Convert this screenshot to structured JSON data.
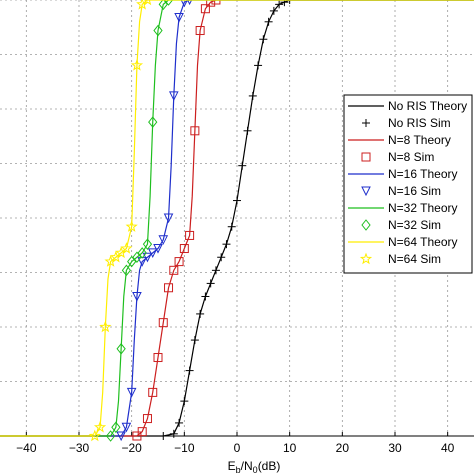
{
  "chart_data": {
    "type": "line",
    "xlabel": "Eb/N0(dB)",
    "xlabel_parts": {
      "e": "E",
      "b": "b",
      "slash": "/N",
      "zero": "0",
      "unit": "(dB)"
    },
    "xlim": [
      -45,
      45
    ],
    "ylim": [
      0,
      1
    ],
    "x_ticks": [
      -40,
      -30,
      -20,
      -10,
      0,
      10,
      20,
      30,
      40
    ],
    "x_tick_labels": [
      "−40",
      "−30",
      "−20",
      "−10",
      "0",
      "10",
      "20",
      "30",
      "40"
    ],
    "grid": true,
    "legend_position": "right",
    "series": [
      {
        "name": "No RIS Theory",
        "color": "#000000",
        "marker": "none",
        "x": [
          -14,
          -12,
          -11,
          -10,
          -9,
          -8,
          -7,
          -6,
          -5,
          -4,
          -3,
          -2,
          -1,
          0,
          1,
          2,
          3,
          4,
          5,
          6,
          7,
          8,
          9,
          10,
          11,
          12,
          14
        ],
        "y": [
          0.0,
          0.005,
          0.03,
          0.08,
          0.15,
          0.22,
          0.28,
          0.32,
          0.35,
          0.38,
          0.41,
          0.44,
          0.48,
          0.54,
          0.62,
          0.7,
          0.78,
          0.85,
          0.91,
          0.95,
          0.975,
          0.99,
          0.995,
          1.0,
          1.0,
          1.0,
          1.0
        ]
      },
      {
        "name": "No RIS Sim",
        "color": "#000000",
        "marker": "plus",
        "x": [
          -14,
          -12,
          -11,
          -10,
          -9,
          -8,
          -7,
          -6,
          -5,
          -4,
          -3,
          -2,
          -1,
          0,
          1,
          2,
          3,
          4,
          5,
          6,
          7,
          8,
          9,
          10
        ],
        "y": [
          0.0,
          0.005,
          0.03,
          0.08,
          0.15,
          0.22,
          0.28,
          0.32,
          0.35,
          0.38,
          0.41,
          0.44,
          0.48,
          0.54,
          0.62,
          0.7,
          0.78,
          0.85,
          0.91,
          0.95,
          0.975,
          0.99,
          0.995,
          1.0
        ]
      },
      {
        "name": "N=8 Theory",
        "color": "#cc1f1f",
        "marker": "none",
        "x": [
          -19,
          -18,
          -17,
          -16,
          -15,
          -14,
          -13,
          -12,
          -11,
          -10,
          -9,
          -8.5,
          -8,
          -7.5,
          -7,
          -6,
          -5,
          -4
        ],
        "y": [
          0.0,
          0.01,
          0.04,
          0.1,
          0.18,
          0.26,
          0.34,
          0.38,
          0.4,
          0.43,
          0.46,
          0.55,
          0.7,
          0.85,
          0.93,
          0.98,
          0.995,
          1.0
        ]
      },
      {
        "name": "N=8 Sim",
        "color": "#cc1f1f",
        "marker": "square",
        "x": [
          -19,
          -18,
          -17,
          -16,
          -15,
          -14,
          -13,
          -12,
          -11,
          -10,
          -9,
          -8,
          -7,
          -6,
          -5,
          -4
        ],
        "y": [
          0.0,
          0.01,
          0.04,
          0.1,
          0.18,
          0.26,
          0.34,
          0.38,
          0.4,
          0.43,
          0.46,
          0.7,
          0.93,
          0.98,
          0.995,
          1.0
        ]
      },
      {
        "name": "N=16 Theory",
        "color": "#1f2fcc",
        "marker": "none",
        "x": [
          -22,
          -21,
          -20,
          -19.5,
          -19,
          -18.5,
          -18,
          -17,
          -16,
          -15,
          -14,
          -13,
          -12.5,
          -12,
          -11.5,
          -11,
          -10,
          -9
        ],
        "y": [
          0.0,
          0.02,
          0.1,
          0.22,
          0.32,
          0.38,
          0.4,
          0.41,
          0.42,
          0.43,
          0.45,
          0.5,
          0.62,
          0.78,
          0.9,
          0.96,
          0.995,
          1.0
        ]
      },
      {
        "name": "N=16 Sim",
        "color": "#1f2fcc",
        "marker": "triangle",
        "x": [
          -22,
          -21,
          -20,
          -19,
          -18,
          -17,
          -16,
          -15,
          -14,
          -13,
          -12,
          -11,
          -10,
          -9
        ],
        "y": [
          0.0,
          0.02,
          0.1,
          0.32,
          0.4,
          0.41,
          0.42,
          0.43,
          0.45,
          0.5,
          0.78,
          0.96,
          0.995,
          1.0
        ]
      },
      {
        "name": "N=32 Theory",
        "color": "#1fbf1f",
        "marker": "none",
        "x": [
          -24,
          -23,
          -22.5,
          -22,
          -21.5,
          -21,
          -20,
          -19,
          -18,
          -17,
          -16.5,
          -16,
          -15.5,
          -15,
          -14,
          -13
        ],
        "y": [
          0.0,
          0.02,
          0.08,
          0.2,
          0.32,
          0.38,
          0.4,
          0.41,
          0.42,
          0.44,
          0.55,
          0.72,
          0.85,
          0.93,
          0.99,
          1.0
        ]
      },
      {
        "name": "N=32 Sim",
        "color": "#1fbf1f",
        "marker": "diamond",
        "x": [
          -24,
          -23,
          -22,
          -21,
          -20,
          -19,
          -18,
          -17,
          -16,
          -15,
          -14,
          -13
        ],
        "y": [
          0.0,
          0.02,
          0.2,
          0.38,
          0.4,
          0.41,
          0.42,
          0.44,
          0.72,
          0.93,
          0.99,
          1.0
        ]
      },
      {
        "name": "N=64 Theory",
        "color": "#ffee00",
        "marker": "none",
        "x": [
          -27,
          -26,
          -25.5,
          -25,
          -24.5,
          -24,
          -23,
          -22,
          -21,
          -20,
          -19.5,
          -19,
          -18.5,
          -18,
          -17
        ],
        "y": [
          0.0,
          0.02,
          0.1,
          0.25,
          0.36,
          0.4,
          0.41,
          0.42,
          0.43,
          0.48,
          0.65,
          0.85,
          0.95,
          0.99,
          1.0
        ]
      },
      {
        "name": "N=64 Sim",
        "color": "#ffee00",
        "marker": "star",
        "x": [
          -27,
          -26,
          -25,
          -24,
          -23,
          -22,
          -21,
          -20,
          -19,
          -18,
          -17
        ],
        "y": [
          0.0,
          0.02,
          0.25,
          0.4,
          0.41,
          0.42,
          0.43,
          0.48,
          0.85,
          0.99,
          1.0
        ]
      }
    ]
  }
}
